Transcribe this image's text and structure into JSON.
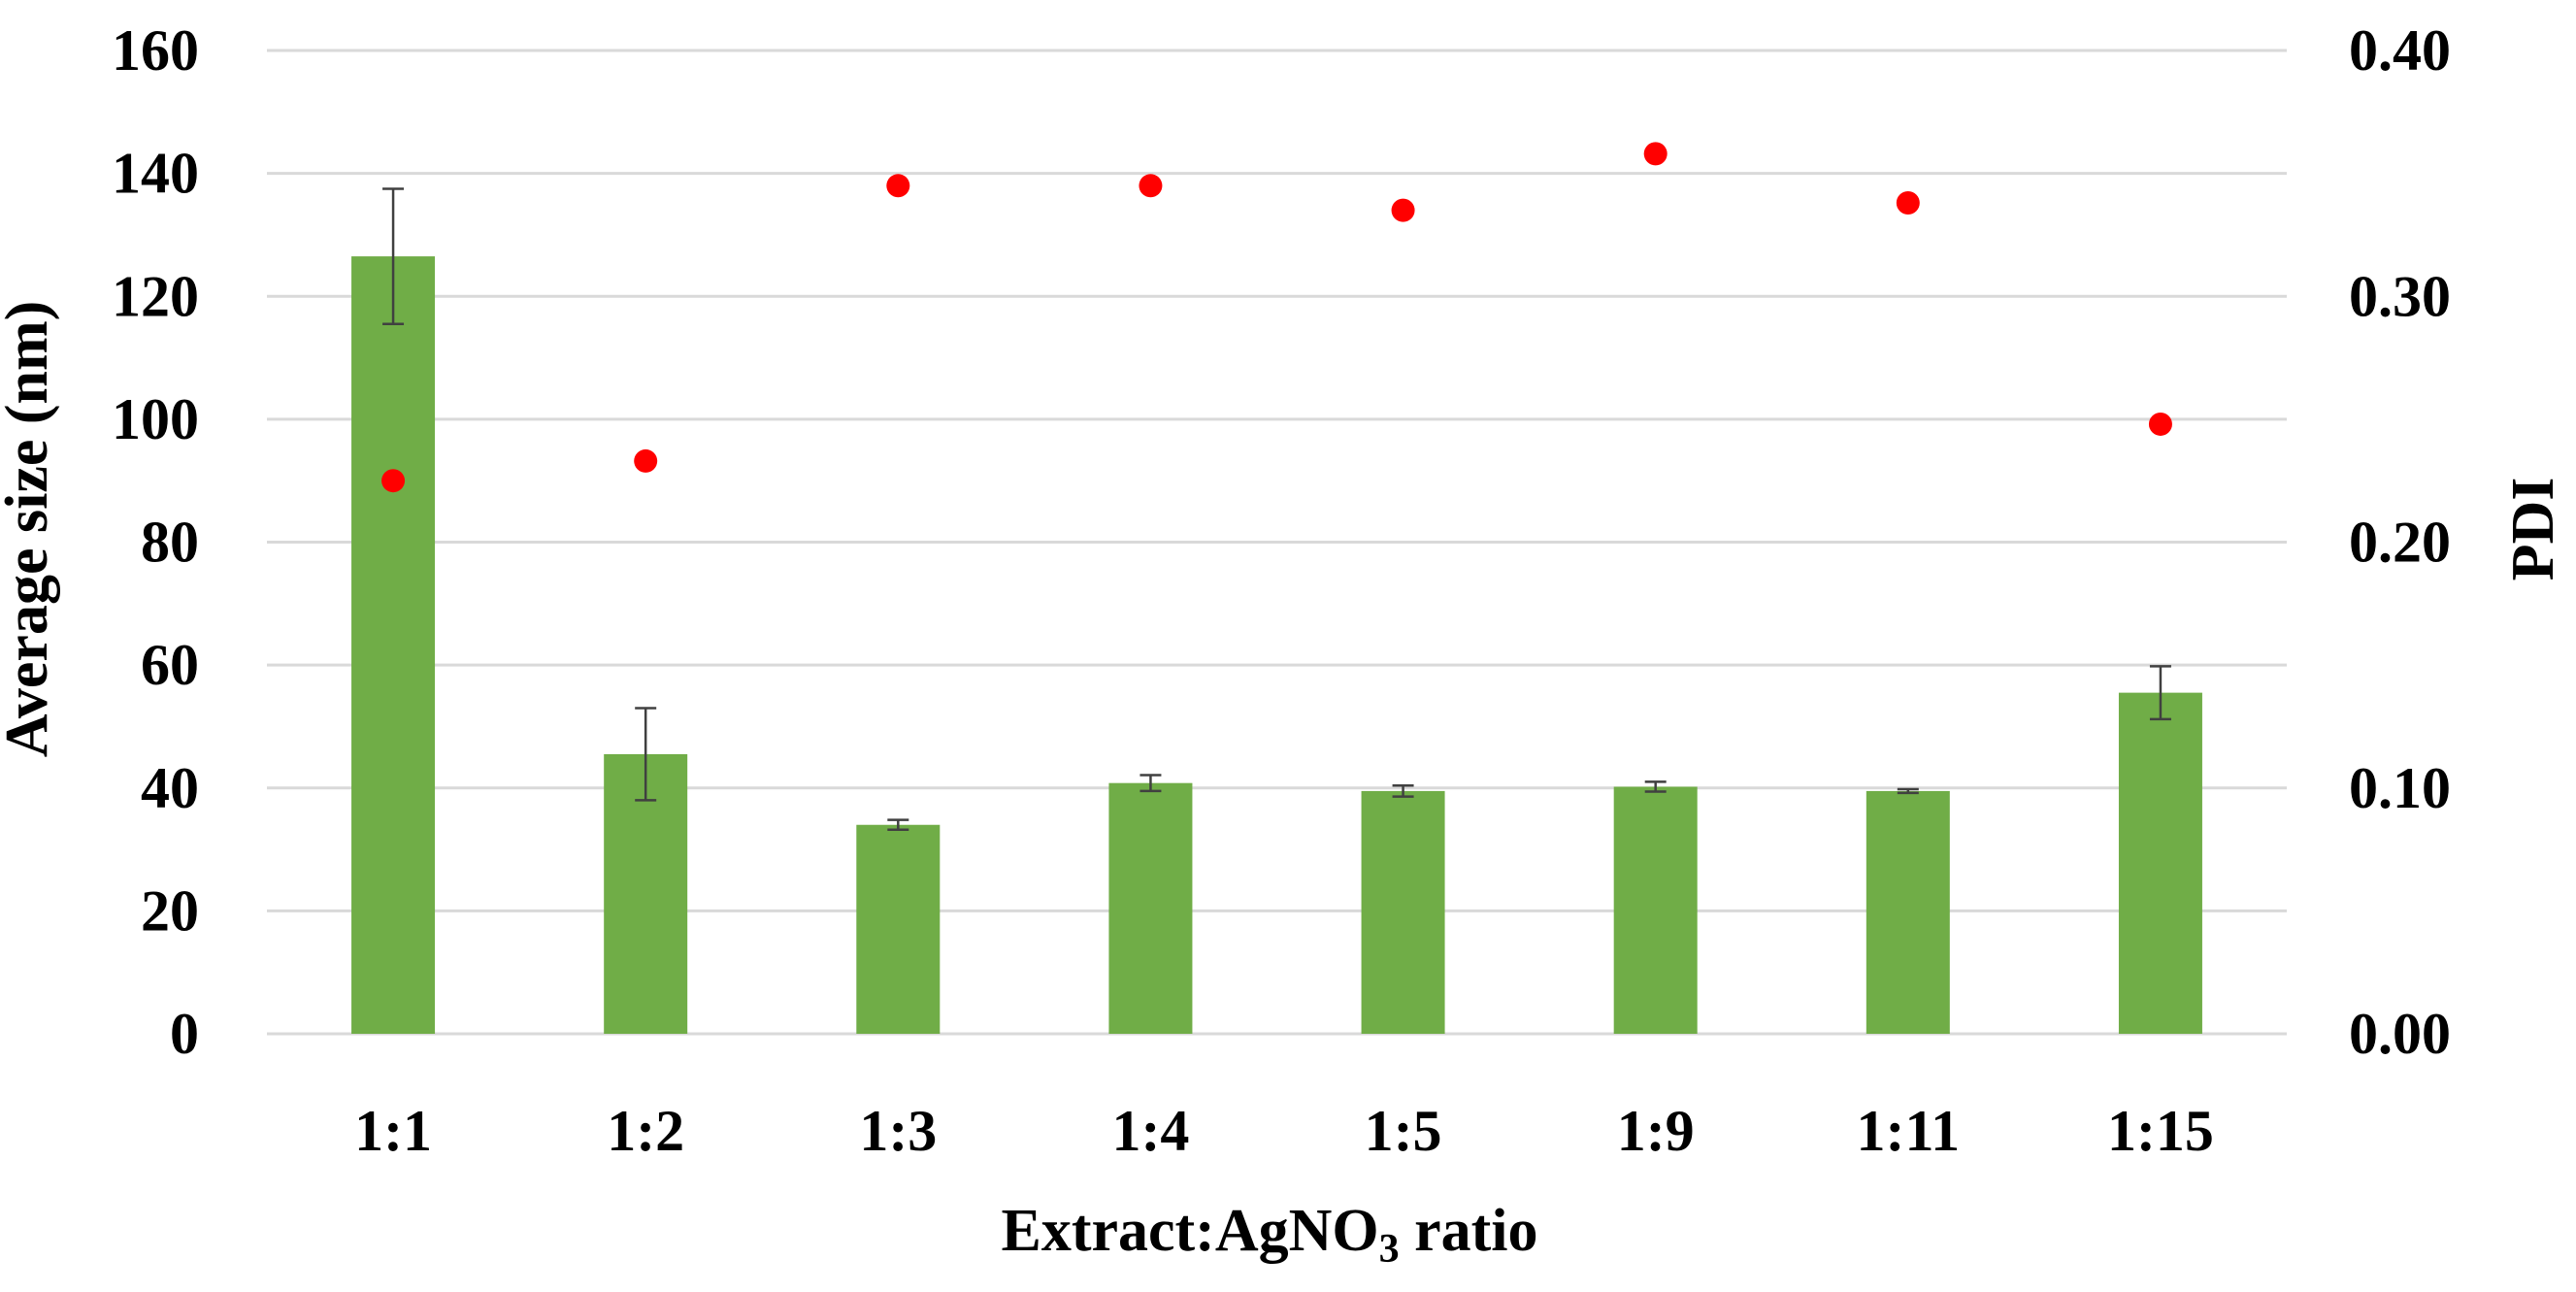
{
  "chart_data": {
    "type": "bar",
    "categories": [
      "1:1",
      "1:2",
      "1:3",
      "1:4",
      "1:5",
      "1:9",
      "1:11",
      "1:15"
    ],
    "series": [
      {
        "name": "Average size (nm)",
        "type": "bar",
        "axis": "left",
        "values": [
          126.5,
          45.5,
          34,
          40.8,
          39.5,
          40.2,
          39.5,
          55.5
        ],
        "error": [
          11,
          7.5,
          0.8,
          1.3,
          0.9,
          0.8,
          0.3,
          4.3
        ]
      },
      {
        "name": "PDI",
        "type": "scatter",
        "axis": "right",
        "values": [
          0.225,
          0.233,
          0.345,
          0.345,
          0.335,
          0.358,
          0.338,
          0.248
        ]
      }
    ],
    "xlabel_prefix": "Extract:AgNO",
    "xlabel_sub": "3",
    "xlabel_suffix": " ratio",
    "ylabel": "Average size (nm)",
    "y2label": "PDI",
    "ylim": [
      0,
      160
    ],
    "yticks": [
      0,
      20,
      40,
      60,
      80,
      100,
      120,
      140,
      160
    ],
    "y2lim": [
      0,
      0.4
    ],
    "y2ticks": [
      "0.00",
      "0.10",
      "0.20",
      "0.30",
      "0.40"
    ],
    "grid": true,
    "colors": {
      "bar": "#70ad47",
      "point": "#ff0000",
      "grid": "#d9d9d9",
      "axis": "#d9d9d9",
      "errorbar": "#404040"
    }
  }
}
